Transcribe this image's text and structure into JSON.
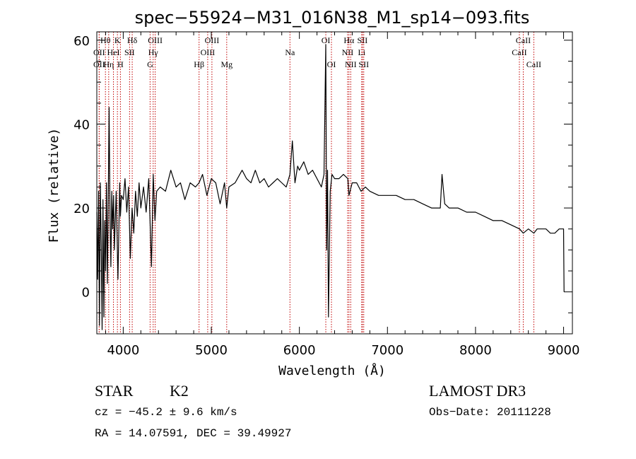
{
  "chart_data": {
    "type": "line",
    "title": "spec−55924−M31_016N38_M1_sp14−093.fits",
    "xlabel": "Wavelength (Å)",
    "ylabel": "Flux (relative)",
    "xlim": [
      3700,
      9100
    ],
    "ylim": [
      -10,
      62
    ],
    "x_ticks": [
      4000,
      5000,
      6000,
      7000,
      8000,
      9000
    ],
    "y_ticks": [
      0,
      20,
      40,
      60
    ],
    "grid": false,
    "series": [
      {
        "name": "flux",
        "x": [
          3700,
          3710,
          3720,
          3730,
          3740,
          3750,
          3760,
          3770,
          3780,
          3790,
          3800,
          3810,
          3820,
          3830,
          3840,
          3850,
          3860,
          3870,
          3880,
          3890,
          3900,
          3920,
          3940,
          3960,
          3968,
          3980,
          4000,
          4020,
          4040,
          4060,
          4080,
          4100,
          4120,
          4140,
          4160,
          4180,
          4200,
          4230,
          4260,
          4290,
          4320,
          4340,
          4360,
          4380,
          4420,
          4480,
          4540,
          4600,
          4650,
          4700,
          4760,
          4820,
          4861,
          4900,
          4950,
          5000,
          5050,
          5100,
          5150,
          5175,
          5200,
          5270,
          5350,
          5400,
          5450,
          5500,
          5550,
          5600,
          5650,
          5700,
          5750,
          5800,
          5850,
          5893,
          5920,
          5950,
          5980,
          6000,
          6050,
          6100,
          6150,
          6200,
          6250,
          6280,
          6300,
          6310,
          6320,
          6330,
          6350,
          6370,
          6400,
          6450,
          6500,
          6550,
          6563,
          6600,
          6650,
          6700,
          6750,
          6800,
          6900,
          7000,
          7100,
          7200,
          7300,
          7400,
          7500,
          7600,
          7620,
          7650,
          7700,
          7800,
          7900,
          8000,
          8100,
          8200,
          8300,
          8400,
          8500,
          8542,
          8600,
          8662,
          8700,
          8800,
          8850,
          8900,
          8950,
          9000,
          9005
        ],
        "y": [
          19,
          3,
          24,
          -8,
          26,
          12,
          -9,
          22,
          -6,
          17,
          5,
          26,
          2,
          22,
          44,
          18,
          6,
          24,
          15,
          23,
          10,
          24,
          3,
          26,
          18,
          23,
          22,
          27,
          19,
          25,
          8,
          20,
          14,
          24,
          18,
          26,
          20,
          25,
          19,
          27,
          6,
          28,
          17,
          24,
          25,
          24,
          29,
          25,
          26,
          22,
          26,
          25,
          26,
          28,
          23,
          27,
          26,
          21,
          26,
          20,
          25,
          26,
          29,
          27,
          26,
          29,
          26,
          27,
          25,
          26,
          27,
          26,
          25,
          28,
          36,
          26,
          30,
          29,
          31,
          28,
          29,
          27,
          25,
          28,
          59,
          10,
          29,
          -6,
          24,
          28,
          27,
          27,
          28,
          27,
          23,
          26,
          26,
          24,
          25,
          24,
          23,
          23,
          23,
          22,
          22,
          21,
          20,
          20,
          28,
          21,
          20,
          20,
          19,
          19,
          18,
          17,
          17,
          16,
          15,
          14,
          15,
          14,
          15,
          15,
          14,
          14,
          15,
          15,
          0
        ]
      }
    ],
    "line_markers": [
      {
        "label": "Hθ",
        "x": 3798,
        "row": 0
      },
      {
        "label": "OII",
        "x": 3727,
        "row": 1
      },
      {
        "label": "OII",
        "x": 3727,
        "row": 2
      },
      {
        "label": "Hη",
        "x": 3835,
        "row": 2
      },
      {
        "label": "HeI",
        "x": 3889,
        "row": 1
      },
      {
        "label": "K",
        "x": 3934,
        "row": 0
      },
      {
        "label": "H",
        "x": 3968,
        "row": 2
      },
      {
        "label": "SII",
        "x": 4072,
        "row": 1
      },
      {
        "label": "Hδ",
        "x": 4102,
        "row": 0
      },
      {
        "label": "OIII",
        "x": 4363,
        "row": 0
      },
      {
        "label": "Hγ",
        "x": 4340,
        "row": 1
      },
      {
        "label": "G",
        "x": 4305,
        "row": 2
      },
      {
        "label": "Hβ",
        "x": 4861,
        "row": 2
      },
      {
        "label": "OIII",
        "x": 4959,
        "row": 1
      },
      {
        "label": "OIII",
        "x": 5007,
        "row": 0
      },
      {
        "label": "Mg",
        "x": 5175,
        "row": 2
      },
      {
        "label": "Na",
        "x": 5893,
        "row": 1
      },
      {
        "label": "OI",
        "x": 6300,
        "row": 0
      },
      {
        "label": "OI",
        "x": 6364,
        "row": 2
      },
      {
        "label": "NII",
        "x": 6548,
        "row": 1
      },
      {
        "label": "Hα",
        "x": 6563,
        "row": 0
      },
      {
        "label": "NII",
        "x": 6583,
        "row": 2
      },
      {
        "label": "SII",
        "x": 6716,
        "row": 0
      },
      {
        "label": "Li",
        "x": 6708,
        "row": 1
      },
      {
        "label": "SII",
        "x": 6731,
        "row": 2
      },
      {
        "label": "CaII",
        "x": 8498,
        "row": 1
      },
      {
        "label": "CaII",
        "x": 8542,
        "row": 0
      },
      {
        "label": "CaII",
        "x": 8662,
        "row": 2
      }
    ]
  },
  "info": {
    "class_label": "STAR",
    "subclass": "K2",
    "survey": "LAMOST DR3",
    "redshift": "cz = −45.2 ± 9.6 km/s",
    "obs_date": "Obs−Date: 20111228",
    "coords": "RA =  14.07591, DEC =  39.49927"
  }
}
